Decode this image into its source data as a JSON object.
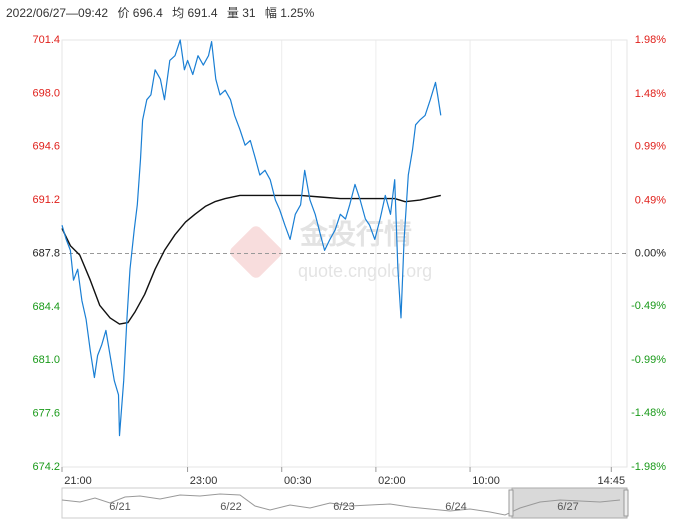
{
  "chart_data": {
    "type": "line",
    "header": [
      "2022/06/27—09:42",
      "价 696.4",
      "均 691.4",
      "量 31",
      "幅 1.25%"
    ],
    "watermark": [
      "金投行情",
      "quote.cngold.org"
    ],
    "xlim": [
      0,
      540
    ],
    "xticks": [
      {
        "value": 0,
        "label": "21:00"
      },
      {
        "value": 120,
        "label": "23:00"
      },
      {
        "value": 210,
        "label": "00:30"
      },
      {
        "value": 300,
        "label": "02:00"
      },
      {
        "value": 390,
        "label": "10:00"
      },
      {
        "value": 525,
        "label": "14:45"
      }
    ],
    "ylim": [
      674.2,
      701.4
    ],
    "yticks": [
      674.2,
      677.6,
      {
        "value": 681,
        "label": "681.0"
      },
      684.4,
      687.8,
      691.2,
      694.6,
      {
        "value": 698,
        "label": "698.0"
      },
      701.4
    ],
    "y2lim": [
      -1.98,
      1.98
    ],
    "y2ticks": [
      {
        "value": -1.98,
        "label": "-1.98%"
      },
      {
        "value": -1.48,
        "label": "-1.48%"
      },
      {
        "value": -0.99,
        "label": "-0.99%"
      },
      {
        "value": -0.49,
        "label": "-0.49%"
      },
      {
        "value": 0,
        "label": "0.00%"
      },
      {
        "value": 0.49,
        "label": "0.49%"
      },
      {
        "value": 0.99,
        "label": "0.99%"
      },
      {
        "value": 1.48,
        "label": "1.48%"
      },
      {
        "value": 1.98,
        "label": "1.98%"
      }
    ],
    "prev_close": 687.8,
    "grid": true,
    "series": [
      {
        "color": "#1a7fd4",
        "x": [
          0,
          4,
          8,
          11,
          15,
          19,
          23,
          27,
          31,
          34,
          38,
          42,
          46,
          50,
          54,
          55,
          59,
          62,
          65,
          69,
          72,
          75,
          77,
          81,
          85,
          89,
          94,
          98,
          103,
          108,
          113,
          117,
          120,
          125,
          130,
          135,
          140,
          143,
          147,
          151,
          156,
          161,
          165,
          170,
          175,
          180,
          185,
          189,
          194,
          199,
          204,
          208,
          213,
          218,
          223,
          228,
          232,
          237,
          242,
          247,
          251,
          256,
          261,
          266,
          271,
          275,
          280,
          285,
          290,
          294,
          299,
          304,
          309,
          314,
          318,
          321,
          324,
          327,
          331,
          335,
          338,
          342,
          347,
          352,
          357,
          359,
          362
        ],
        "values": [
          689.6,
          688.7,
          688.0,
          686.1,
          686.8,
          684.8,
          683.6,
          681.6,
          679.9,
          681.3,
          682.0,
          682.9,
          681.3,
          679.7,
          678.8,
          676.2,
          679.7,
          683.6,
          686.8,
          689.3,
          690.9,
          693.8,
          696.3,
          697.6,
          697.9,
          699.5,
          698.9,
          697.6,
          700.1,
          700.4,
          701.4,
          699.5,
          700.1,
          699.2,
          700.4,
          699.8,
          700.4,
          701.3,
          698.9,
          697.9,
          698.2,
          697.6,
          696.6,
          695.7,
          694.7,
          695.0,
          693.8,
          692.8,
          693.1,
          692.5,
          691.2,
          690.6,
          689.6,
          688.7,
          690.3,
          690.9,
          693.1,
          691.2,
          690.3,
          689.0,
          688.0,
          688.7,
          689.3,
          690.3,
          690.0,
          690.9,
          692.2,
          691.2,
          690.0,
          689.6,
          688.7,
          690.0,
          691.5,
          690.3,
          692.5,
          686.8,
          683.7,
          688.7,
          692.8,
          694.4,
          696.0,
          696.3,
          696.6,
          697.6,
          698.7,
          697.9,
          696.6
        ]
      },
      {
        "color": "#111111",
        "x": [
          0,
          8,
          17,
          27,
          36,
          46,
          55,
          63,
          70,
          79,
          89,
          98,
          108,
          118,
          127,
          137,
          146,
          156,
          170,
          189,
          208,
          228,
          247,
          266,
          285,
          304,
          318,
          328,
          342,
          362
        ],
        "values": [
          689.4,
          688.3,
          687.7,
          686.1,
          684.5,
          683.7,
          683.3,
          683.4,
          684.1,
          685.2,
          686.8,
          688.0,
          689.0,
          689.8,
          690.3,
          690.8,
          691.1,
          691.3,
          691.5,
          691.5,
          691.5,
          691.5,
          691.4,
          691.3,
          691.3,
          691.3,
          691.3,
          691.1,
          691.2,
          691.5
        ]
      }
    ],
    "navigator_labels": [
      "6/21",
      "6/22",
      "6/23",
      "6/24",
      "6/27"
    ]
  }
}
